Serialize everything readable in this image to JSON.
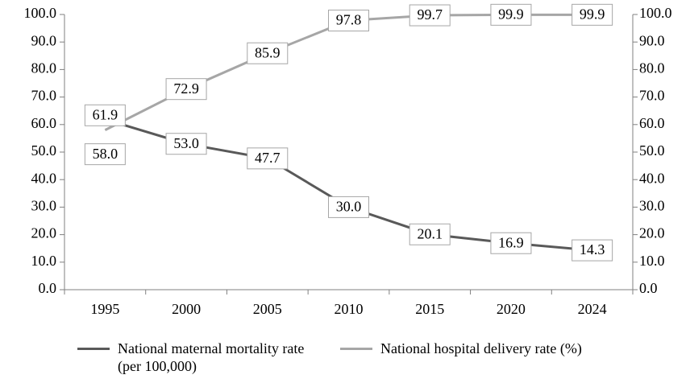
{
  "chart_data": {
    "type": "line",
    "categories": [
      "1995",
      "2000",
      "2005",
      "2010",
      "2015",
      "2020",
      "2024"
    ],
    "series": [
      {
        "name": "National maternal mortality rate (per 100,000)",
        "color": "#595959",
        "values": [
          61.9,
          53.0,
          47.7,
          30.0,
          20.1,
          16.9,
          14.3
        ],
        "value_labels": [
          "61.9",
          "53.0",
          "47.7",
          "30.0",
          "20.1",
          "16.9",
          "14.3"
        ]
      },
      {
        "name": "National hospital delivery rate (%)",
        "color": "#a6a6a6",
        "axis": "y2",
        "values": [
          58.0,
          72.9,
          85.9,
          97.8,
          99.7,
          99.9,
          99.9
        ],
        "value_labels": [
          "58.0",
          "72.9",
          "85.9",
          "97.8",
          "99.7",
          "99.9",
          "99.9"
        ]
      }
    ],
    "ylim": [
      0,
      100
    ],
    "yticks": [
      {
        "value": 0,
        "label": "0.0"
      },
      {
        "value": 10,
        "label": "10.0"
      },
      {
        "value": 20,
        "label": "20.0"
      },
      {
        "value": 30,
        "label": "30.0"
      },
      {
        "value": 40,
        "label": "40.0"
      },
      {
        "value": 50,
        "label": "50.0"
      },
      {
        "value": 60,
        "label": "60.0"
      },
      {
        "value": 70,
        "label": "70.0"
      },
      {
        "value": 80,
        "label": "80.0"
      },
      {
        "value": 90,
        "label": "90.0"
      },
      {
        "value": 100,
        "label": "100.0"
      }
    ],
    "y2lim": [
      0,
      100
    ],
    "y2ticks": [
      {
        "value": 0,
        "label": "0.0"
      },
      {
        "value": 10,
        "label": "10.0"
      },
      {
        "value": 20,
        "label": "20.0"
      },
      {
        "value": 30,
        "label": "30.0"
      },
      {
        "value": 40,
        "label": "40.0"
      },
      {
        "value": 50,
        "label": "50.0"
      },
      {
        "value": 60,
        "label": "60.0"
      },
      {
        "value": 70,
        "label": "70.0"
      },
      {
        "value": 80,
        "label": "80.0"
      },
      {
        "value": 90,
        "label": "90.0"
      },
      {
        "value": 100,
        "label": "100.0"
      }
    ],
    "legend": "bottom"
  }
}
